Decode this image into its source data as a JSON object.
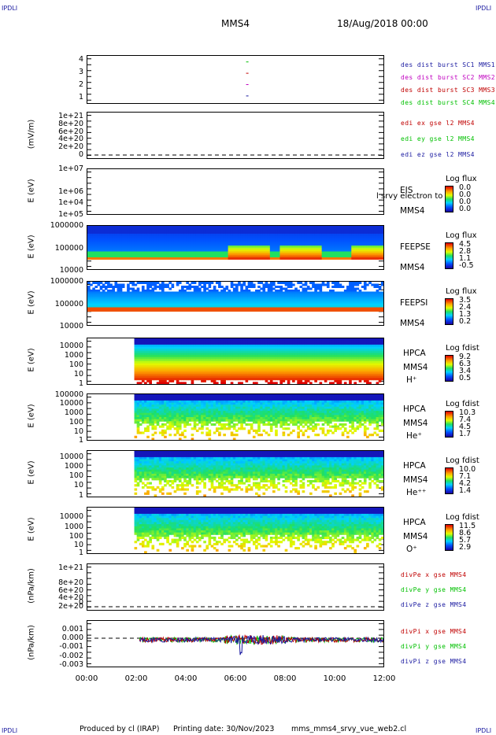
{
  "corner_label": "IPDLI",
  "header": {
    "spacecraft": "MMS4",
    "date": "18/Aug/2018 00:00"
  },
  "footer": {
    "produced_by": "Produced by cl (IRAP)",
    "printing_date": "Printing date: 30/Nov/2023",
    "filename": "mms_mms4_srvy_vue_web2.cl"
  },
  "x_axis": {
    "ticks": [
      "00:00",
      "02:00",
      "04:00",
      "06:00",
      "08:00",
      "10:00",
      "12:00"
    ],
    "range_hours": [
      0,
      12
    ]
  },
  "colors": {
    "mms1": "#1a1aa0",
    "mms2": "#c000c0",
    "mms3": "#c00000",
    "mms4": "#00c000"
  },
  "chart_data": [
    {
      "type": "scatter",
      "ylabel": "",
      "yticks": [
        "4",
        "3",
        "2",
        "1"
      ],
      "legend": [
        {
          "text": "des dist burst SC1 MMS1",
          "color": "#1a1aa0"
        },
        {
          "text": "des dist burst SC2 MMS2",
          "color": "#c000c0"
        },
        {
          "text": "des dist burst SC3 MMS3",
          "color": "#c00000"
        },
        {
          "text": "des dist burst SC4 MMS4",
          "color": "#00c000"
        }
      ]
    },
    {
      "type": "line",
      "ylabel": "(mV/m)",
      "yticks": [
        "1e+21",
        "8e+20",
        "6e+20",
        "4e+20",
        "2e+20",
        "0"
      ],
      "legend": [
        {
          "text": "edi ex gse l2 MMS4",
          "color": "#c00000"
        },
        {
          "text": "edi ey gse l2 MMS4",
          "color": "#00c000"
        },
        {
          "text": "edi ez gse l2 MMS4",
          "color": "#1a1aa0"
        }
      ]
    },
    {
      "type": "heatmap",
      "ylabel": "E (eV)",
      "yticks": [
        "1e+07",
        "1e+06",
        "1e+05",
        "1e+04"
      ],
      "instrument": [
        "EIS",
        "MMS4"
      ],
      "overlay_text": "l srvy electron to",
      "colorbar": {
        "title": "Log flux",
        "values": [
          "0.0",
          "0.0",
          "0.0",
          "0.0"
        ]
      }
    },
    {
      "type": "heatmap",
      "ylabel": "E (eV)",
      "yticks": [
        "1000000",
        "100000",
        "10000"
      ],
      "instrument": [
        "FEEPSE",
        "MMS4"
      ],
      "colorbar": {
        "title": "Log flux",
        "values": [
          "4.5",
          "2.8",
          "1.1",
          "-0.5"
        ]
      }
    },
    {
      "type": "heatmap",
      "ylabel": "E (eV)",
      "yticks": [
        "1000000",
        "100000",
        "10000"
      ],
      "instrument": [
        "FEEPSI",
        "MMS4"
      ],
      "colorbar": {
        "title": "Log flux",
        "values": [
          "3.5",
          "2.4",
          "1.3",
          "0.2"
        ]
      }
    },
    {
      "type": "heatmap",
      "ylabel": "E (eV)",
      "yticks": [
        "10000",
        "1000",
        "100",
        "10",
        "1"
      ],
      "instrument": [
        "HPCA",
        "MMS4",
        "H⁺"
      ],
      "colorbar": {
        "title": "Log fdist",
        "values": [
          "9.2",
          "6.3",
          "3.4",
          "0.5"
        ]
      }
    },
    {
      "type": "heatmap",
      "ylabel": "E (eV)",
      "yticks": [
        "100000",
        "10000",
        "1000",
        "100",
        "10",
        "1"
      ],
      "instrument": [
        "HPCA",
        "MMS4",
        "He⁺"
      ],
      "colorbar": {
        "title": "Log fdist",
        "values": [
          "10.3",
          "7.4",
          "4.5",
          "1.7"
        ]
      }
    },
    {
      "type": "heatmap",
      "ylabel": "E (eV)",
      "yticks": [
        "10000",
        "1000",
        "100",
        "10",
        "1"
      ],
      "instrument": [
        "HPCA",
        "MMS4",
        "He⁺⁺"
      ],
      "colorbar": {
        "title": "Log fdist",
        "values": [
          "10.0",
          "7.1",
          "4.2",
          "1.4"
        ]
      }
    },
    {
      "type": "heatmap",
      "ylabel": "E (eV)",
      "yticks": [
        "10000",
        "1000",
        "100",
        "10",
        "1"
      ],
      "instrument": [
        "HPCA",
        "MMS4",
        "O⁺"
      ],
      "colorbar": {
        "title": "Log fdist",
        "values": [
          "11.5",
          "8.6",
          "5.7",
          "2.9"
        ]
      }
    },
    {
      "type": "line",
      "ylabel": "(nPa/km)",
      "yticks": [
        "1e+21",
        "8e+20",
        "6e+20",
        "4e+20",
        "2e+20",
        "0"
      ],
      "legend": [
        {
          "text": "divPe x gse MMS4",
          "color": "#c00000"
        },
        {
          "text": "divPe y gse MMS4",
          "color": "#00c000"
        },
        {
          "text": "divPe z gse MMS4",
          "color": "#1a1aa0"
        }
      ]
    },
    {
      "type": "line",
      "ylabel": "(nPa/km)",
      "yticks": [
        "0.001",
        "0.000",
        "-0.001",
        "-0.002",
        "-0.003"
      ],
      "legend": [
        {
          "text": "divPi x gse MMS4",
          "color": "#c00000"
        },
        {
          "text": "divPi y gse MMS4",
          "color": "#00c000"
        },
        {
          "text": "divPi z gse MMS4",
          "color": "#1a1aa0"
        }
      ]
    }
  ]
}
